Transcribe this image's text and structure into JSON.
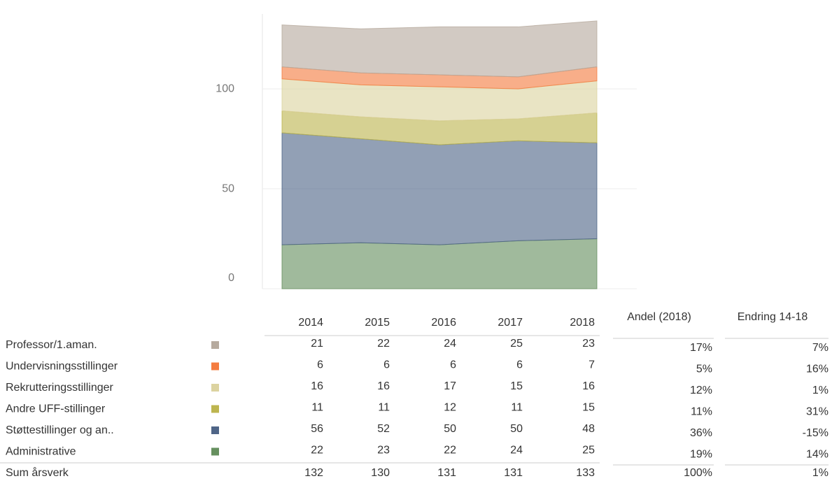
{
  "chart_data": {
    "type": "area",
    "categories": [
      "2014",
      "2015",
      "2016",
      "2017",
      "2018"
    ],
    "ylim": [
      0,
      135
    ],
    "yticks": [
      0,
      50,
      100
    ],
    "grid": true,
    "series": [
      {
        "name": "Administrative",
        "color": "#66905f",
        "values": [
          22,
          23,
          22,
          24,
          25
        ],
        "share": "19%",
        "change": "14%"
      },
      {
        "name": "Støttestillinger og an..",
        "color": "#4f6587",
        "values": [
          56,
          52,
          50,
          50,
          48
        ],
        "share": "36%",
        "change": "-15%"
      },
      {
        "name": "Andre UFF-stillinger",
        "color": "#bdb54f",
        "values": [
          11,
          11,
          12,
          11,
          15
        ],
        "share": "11%",
        "change": "31%"
      },
      {
        "name": "Rekrutteringsstillinger",
        "color": "#dcd3a0",
        "values": [
          16,
          16,
          17,
          15,
          16
        ],
        "share": "12%",
        "change": "1%"
      },
      {
        "name": "Undervisningsstillinger",
        "color": "#f47c40",
        "values": [
          6,
          6,
          6,
          6,
          7
        ],
        "share": "5%",
        "change": "16%"
      },
      {
        "name": "Professor/1.aman.",
        "color": "#b6aa9e",
        "values": [
          21,
          22,
          24,
          25,
          23
        ],
        "share": "17%",
        "change": "7%"
      }
    ],
    "share_label": "Andel (2018)",
    "change_label": "Endring 14-18",
    "total": {
      "name": "Sum årsverk",
      "values": [
        132,
        130,
        131,
        131,
        133
      ],
      "share": "100%",
      "change": "1%"
    }
  }
}
